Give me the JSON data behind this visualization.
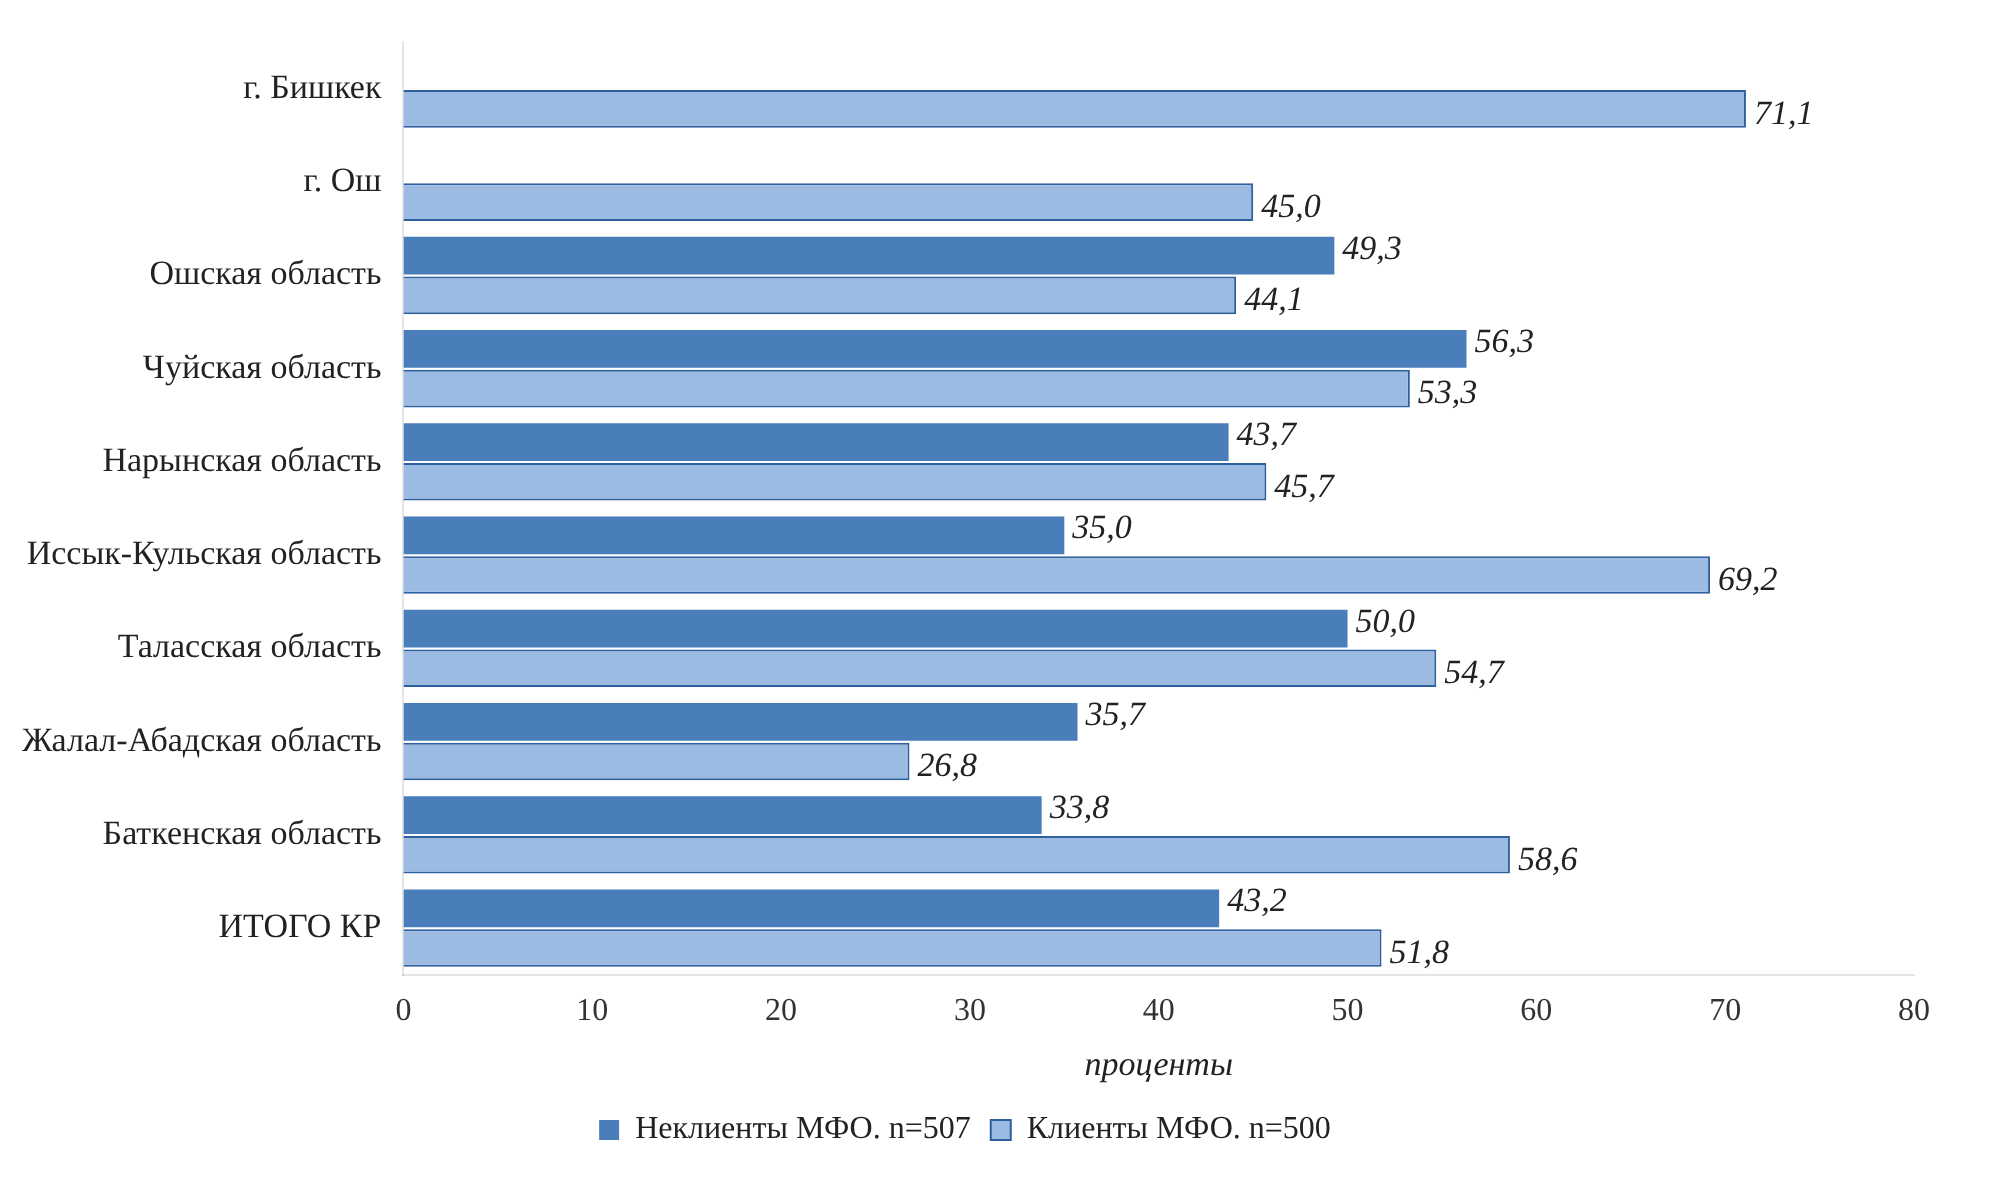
{
  "chart_data": {
    "type": "bar",
    "orientation": "horizontal",
    "xlabel": "проценты",
    "categories": [
      "г. Бишкек",
      "г. Ош",
      "Ошская область",
      "Чуйская область",
      "Нарынская область",
      "Иссык-Кульская область",
      "Таласская область",
      "Жалал-Абадская область",
      "Баткенская область",
      "ИТОГО КР"
    ],
    "series": [
      {
        "name": "Неклиенты МФО. n=507",
        "color": "#4a7ebb",
        "values": [
          null,
          null,
          49.3,
          56.3,
          43.7,
          35.0,
          50.0,
          35.7,
          33.8,
          43.2
        ],
        "value_labels": [
          null,
          null,
          "49,3",
          "56,3",
          "43,7",
          "35,0",
          "50,0",
          "35,7",
          "33,8",
          "43,2"
        ]
      },
      {
        "name": "Клиенты МФО. n=500",
        "color": "#9bbbe3",
        "values": [
          71.1,
          45.0,
          44.1,
          53.3,
          45.7,
          69.2,
          54.7,
          26.8,
          58.6,
          51.8
        ],
        "value_labels": [
          "71,1",
          "45,0",
          "44,1",
          "53,3",
          "45,7",
          "69,2",
          "54,7",
          "26,8",
          "58,6",
          "51,8"
        ]
      }
    ],
    "xlim": [
      0,
      80
    ],
    "xticks": [
      0,
      10,
      20,
      30,
      40,
      50,
      60,
      70,
      80
    ],
    "grid": false,
    "legend": "bottom"
  }
}
